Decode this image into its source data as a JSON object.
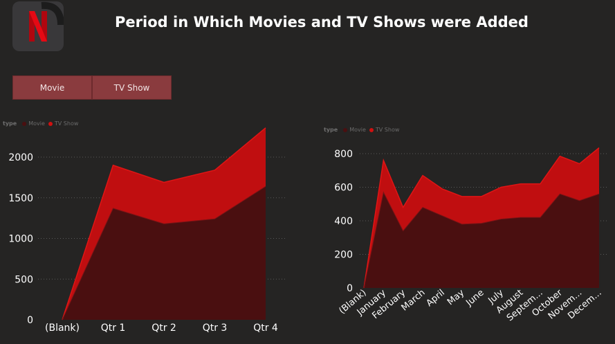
{
  "header": {
    "title": "Period in Which Movies and TV Shows were Added",
    "logo_letter": "N"
  },
  "slicer": {
    "options": [
      "Movie",
      "TV Show"
    ]
  },
  "colors": {
    "movie": "#4a0f10",
    "tv_show": "#c00e10",
    "tv_show_line": "#e01515",
    "background": "#252423",
    "grid": "#5a5a5a",
    "button": "#8a3b3e"
  },
  "legend": {
    "label": "type",
    "items": [
      "Movie",
      "TV Show"
    ]
  },
  "chart_data": [
    {
      "type": "area",
      "stacked": true,
      "categories": [
        "(Blank)",
        "Qtr 1",
        "Qtr 2",
        "Qtr 3",
        "Qtr 4"
      ],
      "series": [
        {
          "name": "Movie",
          "values": [
            0,
            1370,
            1180,
            1240,
            1640
          ]
        },
        {
          "name": "TV Show",
          "values": [
            0,
            530,
            510,
            600,
            720
          ]
        }
      ],
      "ylim": [
        0,
        2400
      ],
      "yticks": [
        "0",
        "500",
        "1000",
        "1500",
        "2000"
      ],
      "ytick_values": [
        0,
        500,
        1000,
        1500,
        2000
      ],
      "grid": true,
      "legend_position": "top-left"
    },
    {
      "type": "area",
      "stacked": true,
      "categories": [
        "(Blank)",
        "January",
        "February",
        "March",
        "April",
        "May",
        "June",
        "July",
        "August",
        "Septem...",
        "October",
        "Novem...",
        "Decem..."
      ],
      "series": [
        {
          "name": "Movie",
          "values": [
            0,
            570,
            340,
            480,
            430,
            380,
            385,
            410,
            420,
            420,
            560,
            520,
            560
          ]
        },
        {
          "name": "TV Show",
          "values": [
            0,
            190,
            140,
            190,
            160,
            165,
            160,
            190,
            200,
            200,
            225,
            220,
            275
          ]
        }
      ],
      "ylim": [
        0,
        870
      ],
      "yticks": [
        "0",
        "200",
        "400",
        "600",
        "800"
      ],
      "ytick_values": [
        0,
        200,
        400,
        600,
        800
      ],
      "grid": true,
      "legend_position": "top-left"
    }
  ]
}
